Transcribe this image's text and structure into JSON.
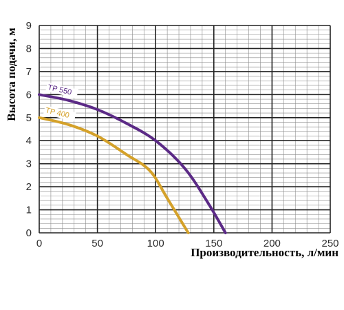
{
  "chart_data": {
    "type": "line",
    "title": "",
    "xlabel": "Производительность, л/мин",
    "ylabel": "Высота подачи, м",
    "xlim": [
      0,
      250
    ],
    "ylim": [
      0,
      9
    ],
    "x_ticks": [
      0,
      50,
      100,
      150,
      200,
      250
    ],
    "x_tick_labels": [
      "0",
      "50",
      "100",
      "150",
      "200",
      "250"
    ],
    "y_ticks": [
      0,
      1,
      2,
      3,
      4,
      5,
      6,
      7,
      8,
      9
    ],
    "y_tick_labels": [
      "0",
      "1",
      "2",
      "3",
      "4",
      "5",
      "6",
      "7",
      "8",
      "9"
    ],
    "grid": true,
    "grid_minor_x_step": 10,
    "grid_minor_y_step": 0.2,
    "legend": "inline labels on curves",
    "series": [
      {
        "name": "TP 550",
        "color": "#5b2a86",
        "x": [
          0,
          25,
          50,
          75,
          100,
          125,
          145,
          160
        ],
        "y": [
          6.0,
          5.75,
          5.35,
          4.75,
          4.0,
          2.8,
          1.3,
          0.0
        ]
      },
      {
        "name": "TP 400",
        "color": "#d4a12a",
        "x": [
          0,
          25,
          50,
          75,
          95,
          110,
          128
        ],
        "y": [
          5.0,
          4.7,
          4.2,
          3.4,
          2.7,
          1.5,
          0.0
        ]
      }
    ]
  }
}
